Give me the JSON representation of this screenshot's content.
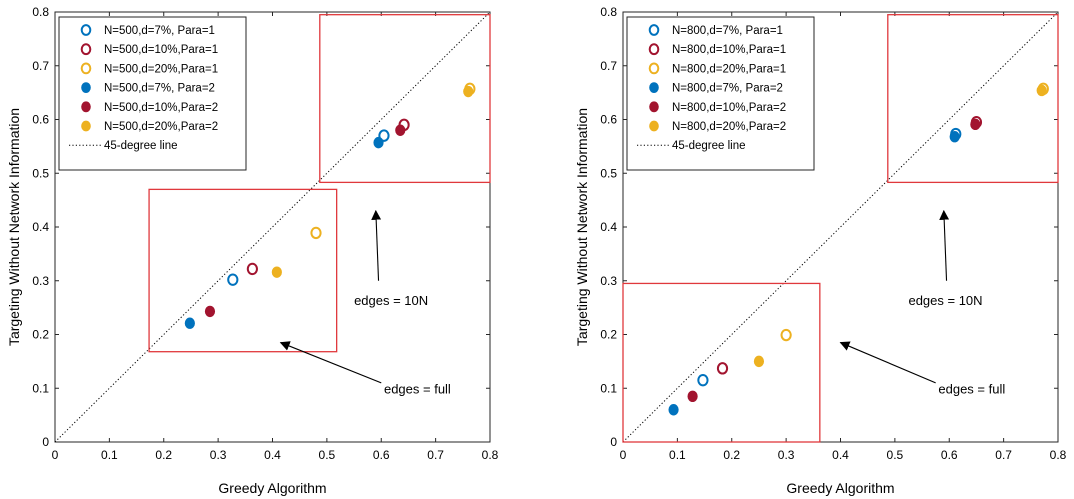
{
  "chart_data": [
    {
      "type": "scatter",
      "xlabel": "Greedy Algorithm",
      "ylabel": "Targeting Without Network Information",
      "xlim": [
        0,
        0.8
      ],
      "ylim": [
        0,
        0.8
      ],
      "xticks": [
        "0",
        "0.1",
        "0.2",
        "0.3",
        "0.4",
        "0.5",
        "0.6",
        "0.7",
        "0.8"
      ],
      "yticks": [
        "0",
        "0.1",
        "0.2",
        "0.3",
        "0.4",
        "0.5",
        "0.6",
        "0.7",
        "0.8"
      ],
      "grid": false,
      "legend_position": "top-left",
      "reference_line": {
        "label": "45-degree line",
        "from": [
          0,
          0
        ],
        "to": [
          0.8,
          0.8
        ]
      },
      "series": [
        {
          "name": "N=500,d=7%,  Para=1",
          "color": "#0072BD",
          "filled": false,
          "points": [
            {
              "x": 0.605,
              "y": 0.57
            },
            {
              "x": 0.327,
              "y": 0.302
            }
          ]
        },
        {
          "name": "N=500,d=10%,Para=1",
          "color": "#A2142F",
          "filled": false,
          "points": [
            {
              "x": 0.642,
              "y": 0.59
            },
            {
              "x": 0.363,
              "y": 0.322
            }
          ]
        },
        {
          "name": "N=500,d=20%,Para=1",
          "color": "#EDB120",
          "filled": false,
          "points": [
            {
              "x": 0.763,
              "y": 0.657
            },
            {
              "x": 0.48,
              "y": 0.389
            }
          ]
        },
        {
          "name": "N=500,d=7%,  Para=2",
          "color": "#0072BD",
          "filled": true,
          "points": [
            {
              "x": 0.595,
              "y": 0.557
            },
            {
              "x": 0.248,
              "y": 0.221
            }
          ]
        },
        {
          "name": "N=500,d=10%,Para=2",
          "color": "#A2142F",
          "filled": true,
          "points": [
            {
              "x": 0.635,
              "y": 0.58
            },
            {
              "x": 0.285,
              "y": 0.243
            }
          ]
        },
        {
          "name": "N=500,d=20%,Para=2",
          "color": "#EDB120",
          "filled": true,
          "points": [
            {
              "x": 0.76,
              "y": 0.652
            },
            {
              "x": 0.408,
              "y": 0.316
            }
          ]
        }
      ],
      "boxes": [
        {
          "x0": 0.487,
          "y0": 0.483,
          "x1": 0.8,
          "y1": 0.795
        },
        {
          "x0": 0.173,
          "y0": 0.168,
          "x1": 0.518,
          "y1": 0.47
        }
      ],
      "annotations": [
        {
          "text": "edges = 10N",
          "text_at": [
            0.55,
            0.255
          ],
          "from": [
            0.595,
            0.3
          ],
          "to": [
            0.59,
            0.43
          ]
        },
        {
          "text": "edges = full",
          "text_at": [
            0.605,
            0.09
          ],
          "from": [
            0.6,
            0.11
          ],
          "to": [
            0.415,
            0.185
          ]
        }
      ]
    },
    {
      "type": "scatter",
      "xlabel": "Greedy Algorithm",
      "ylabel": "Targeting Without Network Information",
      "xlim": [
        0,
        0.8
      ],
      "ylim": [
        0,
        0.8
      ],
      "xticks": [
        "0",
        "0.1",
        "0.2",
        "0.3",
        "0.4",
        "0.5",
        "0.6",
        "0.7",
        "0.8"
      ],
      "yticks": [
        "0",
        "0.1",
        "0.2",
        "0.3",
        "0.4",
        "0.5",
        "0.6",
        "0.7",
        "0.8"
      ],
      "grid": false,
      "legend_position": "top-left",
      "reference_line": {
        "label": "45-degree line",
        "from": [
          0,
          0
        ],
        "to": [
          0.8,
          0.8
        ]
      },
      "series": [
        {
          "name": "N=800,d=7%,  Para=1",
          "color": "#0072BD",
          "filled": false,
          "points": [
            {
              "x": 0.612,
              "y": 0.573
            },
            {
              "x": 0.147,
              "y": 0.115
            }
          ]
        },
        {
          "name": "N=800,d=10%,Para=1",
          "color": "#A2142F",
          "filled": false,
          "points": [
            {
              "x": 0.65,
              "y": 0.595
            },
            {
              "x": 0.183,
              "y": 0.137
            }
          ]
        },
        {
          "name": "N=800,d=20%,Para=1",
          "color": "#EDB120",
          "filled": false,
          "points": [
            {
              "x": 0.773,
              "y": 0.657
            },
            {
              "x": 0.3,
              "y": 0.199
            }
          ]
        },
        {
          "name": "N=800,d=7%,  Para=2",
          "color": "#0072BD",
          "filled": true,
          "points": [
            {
              "x": 0.61,
              "y": 0.568
            },
            {
              "x": 0.093,
              "y": 0.06
            }
          ]
        },
        {
          "name": "N=800,d=10%,Para=2",
          "color": "#A2142F",
          "filled": true,
          "points": [
            {
              "x": 0.648,
              "y": 0.591
            },
            {
              "x": 0.128,
              "y": 0.085
            }
          ]
        },
        {
          "name": "N=800,d=20%,Para=2",
          "color": "#EDB120",
          "filled": true,
          "points": [
            {
              "x": 0.77,
              "y": 0.654
            },
            {
              "x": 0.25,
              "y": 0.15
            }
          ]
        }
      ],
      "boxes": [
        {
          "x0": 0.487,
          "y0": 0.483,
          "x1": 0.8,
          "y1": 0.795
        },
        {
          "x0": 0.0,
          "y0": 0.0,
          "x1": 0.362,
          "y1": 0.295
        }
      ],
      "annotations": [
        {
          "text": "edges = 10N",
          "text_at": [
            0.525,
            0.255
          ],
          "from": [
            0.595,
            0.3
          ],
          "to": [
            0.59,
            0.43
          ]
        },
        {
          "text": "edges = full",
          "text_at": [
            0.58,
            0.09
          ],
          "from": [
            0.575,
            0.11
          ],
          "to": [
            0.4,
            0.185
          ]
        }
      ]
    }
  ]
}
